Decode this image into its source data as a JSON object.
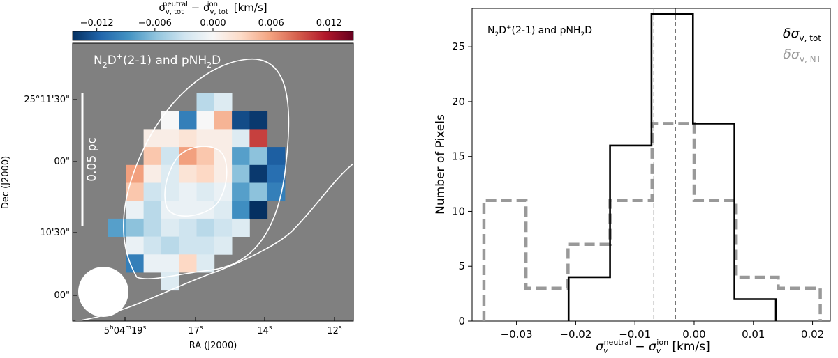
{
  "chart_data": [
    {
      "type": "heatmap",
      "title": "N₂D⁺(2-1) and pNH₂D",
      "panel_label": {
        "main": "N",
        "sub": "2",
        "mid": "D",
        "sup": "+",
        "rest": "(2-1) and pNH",
        "sub2": "2",
        "end": "D"
      },
      "xlabel": "RA (J2000)",
      "ylabel": "Dec (J2000)",
      "x_ticks": [
        {
          "main": "5",
          "sup1": "h",
          "mid": "04",
          "sup2": "m",
          "end": "19",
          "sup3": "s"
        },
        {
          "main": "17",
          "sup3": "s"
        },
        {
          "main": "14",
          "sup3": "s"
        },
        {
          "main": "12",
          "sup3": "s"
        }
      ],
      "y_ticks": [
        "25°11'30\"",
        "00\"",
        "10'30\"",
        "00\""
      ],
      "colorbar": {
        "label_main": "σ",
        "label_sub": "v, tot",
        "label_sup1": "neutral",
        "label_minus": " − ",
        "label_sup2": "ion",
        "label_unit": " [km/s]",
        "ticks": [
          "−0.012",
          "−0.006",
          "0.000",
          "0.006",
          "0.012"
        ],
        "tick_values": [
          -0.012,
          -0.006,
          0.0,
          0.006,
          0.012
        ],
        "range": [
          -0.0145,
          0.0145
        ],
        "cmap": "RdBu_r"
      },
      "scalebar_label": "0.05 pc",
      "background_color": "#808080",
      "pixels": [
        {
          "col": 5,
          "row": 0,
          "v": -0.004
        },
        {
          "col": 6,
          "row": 0,
          "v": -0.002
        },
        {
          "col": 3,
          "row": 1,
          "v": 0.0
        },
        {
          "col": 4,
          "row": 1,
          "v": -0.01
        },
        {
          "col": 5,
          "row": 1,
          "v": 0.0
        },
        {
          "col": 6,
          "row": 1,
          "v": 0.005
        },
        {
          "col": 7,
          "row": 1,
          "v": -0.013
        },
        {
          "col": 8,
          "row": 1,
          "v": -0.014
        },
        {
          "col": 2,
          "row": 2,
          "v": 0.001
        },
        {
          "col": 3,
          "row": 2,
          "v": 0.001
        },
        {
          "col": 4,
          "row": 2,
          "v": 0.002
        },
        {
          "col": 5,
          "row": 2,
          "v": 0.001
        },
        {
          "col": 6,
          "row": 2,
          "v": 0.001
        },
        {
          "col": 7,
          "row": 2,
          "v": -0.002
        },
        {
          "col": 8,
          "row": 2,
          "v": 0.01
        },
        {
          "col": 2,
          "row": 3,
          "v": 0.004
        },
        {
          "col": 3,
          "row": 3,
          "v": -0.003
        },
        {
          "col": 4,
          "row": 3,
          "v": 0.006
        },
        {
          "col": 5,
          "row": 3,
          "v": 0.004
        },
        {
          "col": 6,
          "row": 3,
          "v": 0.001
        },
        {
          "col": 7,
          "row": 3,
          "v": -0.008
        },
        {
          "col": 8,
          "row": 3,
          "v": -0.006
        },
        {
          "col": 9,
          "row": 3,
          "v": -0.012
        },
        {
          "col": 1,
          "row": 4,
          "v": 0.006
        },
        {
          "col": 2,
          "row": 4,
          "v": 0.001
        },
        {
          "col": 3,
          "row": 4,
          "v": -0.002
        },
        {
          "col": 4,
          "row": 4,
          "v": 0.002
        },
        {
          "col": 5,
          "row": 4,
          "v": 0.003
        },
        {
          "col": 6,
          "row": 4,
          "v": 0.001
        },
        {
          "col": 7,
          "row": 4,
          "v": -0.006
        },
        {
          "col": 8,
          "row": 4,
          "v": -0.014
        },
        {
          "col": 9,
          "row": 4,
          "v": -0.011
        },
        {
          "col": 1,
          "row": 5,
          "v": 0.004
        },
        {
          "col": 2,
          "row": 5,
          "v": -0.003
        },
        {
          "col": 3,
          "row": 5,
          "v": -0.002
        },
        {
          "col": 4,
          "row": 5,
          "v": -0.001
        },
        {
          "col": 5,
          "row": 5,
          "v": -0.002
        },
        {
          "col": 6,
          "row": 5,
          "v": -0.001
        },
        {
          "col": 7,
          "row": 5,
          "v": -0.008
        },
        {
          "col": 8,
          "row": 5,
          "v": -0.006
        },
        {
          "col": 9,
          "row": 5,
          "v": -0.01
        },
        {
          "col": 1,
          "row": 6,
          "v": -0.001
        },
        {
          "col": 2,
          "row": 6,
          "v": -0.004
        },
        {
          "col": 3,
          "row": 6,
          "v": -0.001
        },
        {
          "col": 4,
          "row": 6,
          "v": -0.001
        },
        {
          "col": 5,
          "row": 6,
          "v": -0.001
        },
        {
          "col": 6,
          "row": 6,
          "v": -0.002
        },
        {
          "col": 7,
          "row": 6,
          "v": -0.009
        },
        {
          "col": 8,
          "row": 6,
          "v": -0.015
        },
        {
          "col": 0,
          "row": 7,
          "v": -0.008
        },
        {
          "col": 1,
          "row": 7,
          "v": -0.006
        },
        {
          "col": 2,
          "row": 7,
          "v": -0.004
        },
        {
          "col": 3,
          "row": 7,
          "v": -0.002
        },
        {
          "col": 4,
          "row": 7,
          "v": -0.003
        },
        {
          "col": 5,
          "row": 7,
          "v": -0.004
        },
        {
          "col": 6,
          "row": 7,
          "v": -0.003
        },
        {
          "col": 7,
          "row": 7,
          "v": -0.002
        },
        {
          "col": 1,
          "row": 8,
          "v": -0.001
        },
        {
          "col": 2,
          "row": 8,
          "v": -0.003
        },
        {
          "col": 3,
          "row": 8,
          "v": -0.004
        },
        {
          "col": 4,
          "row": 8,
          "v": -0.003
        },
        {
          "col": 5,
          "row": 8,
          "v": -0.003
        },
        {
          "col": 6,
          "row": 8,
          "v": -0.002
        },
        {
          "col": 1,
          "row": 9,
          "v": -0.01
        },
        {
          "col": 2,
          "row": 9,
          "v": -0.001
        },
        {
          "col": 3,
          "row": 9,
          "v": -0.001
        },
        {
          "col": 4,
          "row": 9,
          "v": 0.003
        },
        {
          "col": 5,
          "row": 9,
          "v": -0.002
        },
        {
          "col": 3,
          "row": 10,
          "v": -0.002
        }
      ]
    },
    {
      "type": "histogram",
      "annotation": {
        "main": "N",
        "sub": "2",
        "mid": "D",
        "sup": "+",
        "rest": "(2-1) and pNH",
        "sub2": "2",
        "end": "D"
      },
      "xlabel": {
        "main": "σ",
        "sub1": "v",
        "sup1": "neutral",
        "minus": " − ",
        "main2": "σ",
        "sub2": "v",
        "sup2": "ion",
        "unit": " [km/s]"
      },
      "ylabel": "Number of Pixels",
      "xlim": [
        -0.0375,
        0.023
      ],
      "ylim": [
        0,
        28.5
      ],
      "x_ticks": [
        -0.03,
        -0.02,
        -0.01,
        0.0,
        0.01,
        0.02
      ],
      "x_tick_labels": [
        "−0.03",
        "−0.02",
        "−0.01",
        "0.00",
        "0.01",
        "0.02"
      ],
      "y_ticks": [
        0,
        5,
        10,
        15,
        20,
        25
      ],
      "legend_position": "top-right",
      "series": [
        {
          "name": "δσ_{v,tot}",
          "legend_main": "δσ",
          "legend_sub": "v, tot",
          "color": "#000000",
          "style": "solid",
          "edges": [
            -0.0212,
            -0.0142,
            -0.0072,
            -0.0002,
            0.0068,
            0.0138
          ],
          "counts": [
            4,
            16,
            28,
            18,
            2
          ],
          "median": -0.0032
        },
        {
          "name": "δσ_{v,NT}",
          "legend_main": "δσ",
          "legend_sub": "v, NT",
          "color": "#999999",
          "style": "dashed",
          "edges": [
            -0.0355,
            -0.0284,
            -0.0213,
            -0.0142,
            -0.0071,
            0.0,
            0.0071,
            0.0142,
            0.0213
          ],
          "counts": [
            11,
            3,
            7,
            11,
            18,
            11,
            4,
            3
          ],
          "median": -0.0068
        }
      ]
    }
  ]
}
